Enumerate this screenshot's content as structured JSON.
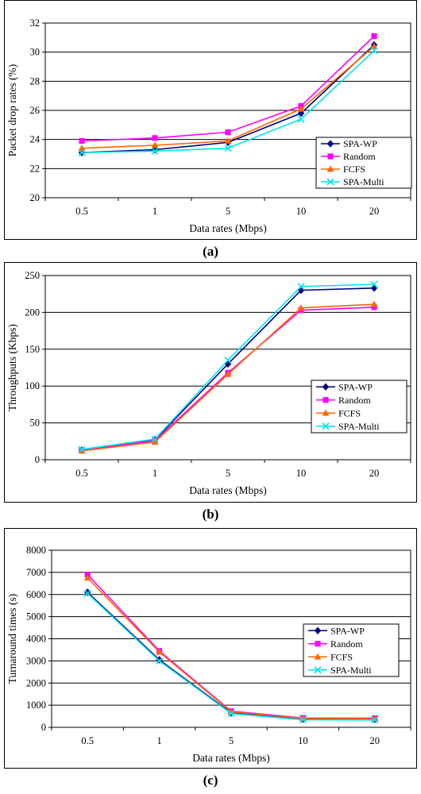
{
  "captions": [
    "(a)",
    "(b)",
    "(c)"
  ],
  "colors": {
    "SPA-WP": "#000080",
    "Random": "#ff00ff",
    "FCFS": "#ff6600",
    "SPA-Multi": "#00e5ee"
  },
  "chart_data": [
    {
      "type": "line",
      "categories": [
        "0.5",
        "1",
        "5",
        "10",
        "20"
      ],
      "xlabel": "Data rates (Mbps)",
      "ylabel": "Packet drop rates (%)",
      "ylim": [
        20,
        32
      ],
      "yticks": [
        20,
        22,
        24,
        26,
        28,
        30,
        32
      ],
      "grid": "horizontal",
      "legend": "bottom-right",
      "series": [
        {
          "name": "SPA-WP",
          "marker": "diamond",
          "values": [
            23.1,
            23.3,
            23.8,
            25.8,
            30.5
          ]
        },
        {
          "name": "Random",
          "marker": "square",
          "values": [
            23.9,
            24.1,
            24.5,
            26.3,
            31.1
          ]
        },
        {
          "name": "FCFS",
          "marker": "triangle",
          "values": [
            23.4,
            23.6,
            23.9,
            26.1,
            30.4
          ]
        },
        {
          "name": "SPA-Multi",
          "marker": "x",
          "values": [
            23.1,
            23.2,
            23.4,
            25.4,
            30.1
          ]
        }
      ]
    },
    {
      "type": "line",
      "categories": [
        "0.5",
        "1",
        "5",
        "10",
        "20"
      ],
      "xlabel": "Data rates (Mbps)",
      "ylabel": "Throughputs (Kbps)",
      "ylim": [
        0,
        250
      ],
      "yticks": [
        0,
        50,
        100,
        150,
        200,
        250
      ],
      "grid": "horizontal",
      "legend": "bottom-right",
      "series": [
        {
          "name": "SPA-WP",
          "marker": "diamond",
          "values": [
            13,
            27,
            130,
            230,
            233
          ]
        },
        {
          "name": "Random",
          "marker": "square",
          "values": [
            13,
            26,
            118,
            203,
            207
          ]
        },
        {
          "name": "FCFS",
          "marker": "triangle",
          "values": [
            12,
            24,
            116,
            206,
            211
          ]
        },
        {
          "name": "SPA-Multi",
          "marker": "x",
          "values": [
            14,
            28,
            135,
            235,
            238
          ]
        }
      ]
    },
    {
      "type": "line",
      "categories": [
        "0.5",
        "1",
        "5",
        "10",
        "20"
      ],
      "xlabel": "Data rates (Mbps)",
      "ylabel": "Turnaround times (s)",
      "ylim": [
        0,
        8000
      ],
      "yticks": [
        0,
        1000,
        2000,
        3000,
        4000,
        5000,
        6000,
        7000,
        8000
      ],
      "grid": "horizontal",
      "legend": "bottom-right",
      "series": [
        {
          "name": "SPA-WP",
          "marker": "diamond",
          "values": [
            6100,
            3050,
            650,
            370,
            360
          ]
        },
        {
          "name": "Random",
          "marker": "square",
          "values": [
            6900,
            3450,
            730,
            420,
            410
          ]
        },
        {
          "name": "FCFS",
          "marker": "triangle",
          "values": [
            6750,
            3400,
            700,
            400,
            390
          ]
        },
        {
          "name": "SPA-Multi",
          "marker": "x",
          "values": [
            6050,
            3000,
            620,
            340,
            330
          ]
        }
      ]
    }
  ]
}
